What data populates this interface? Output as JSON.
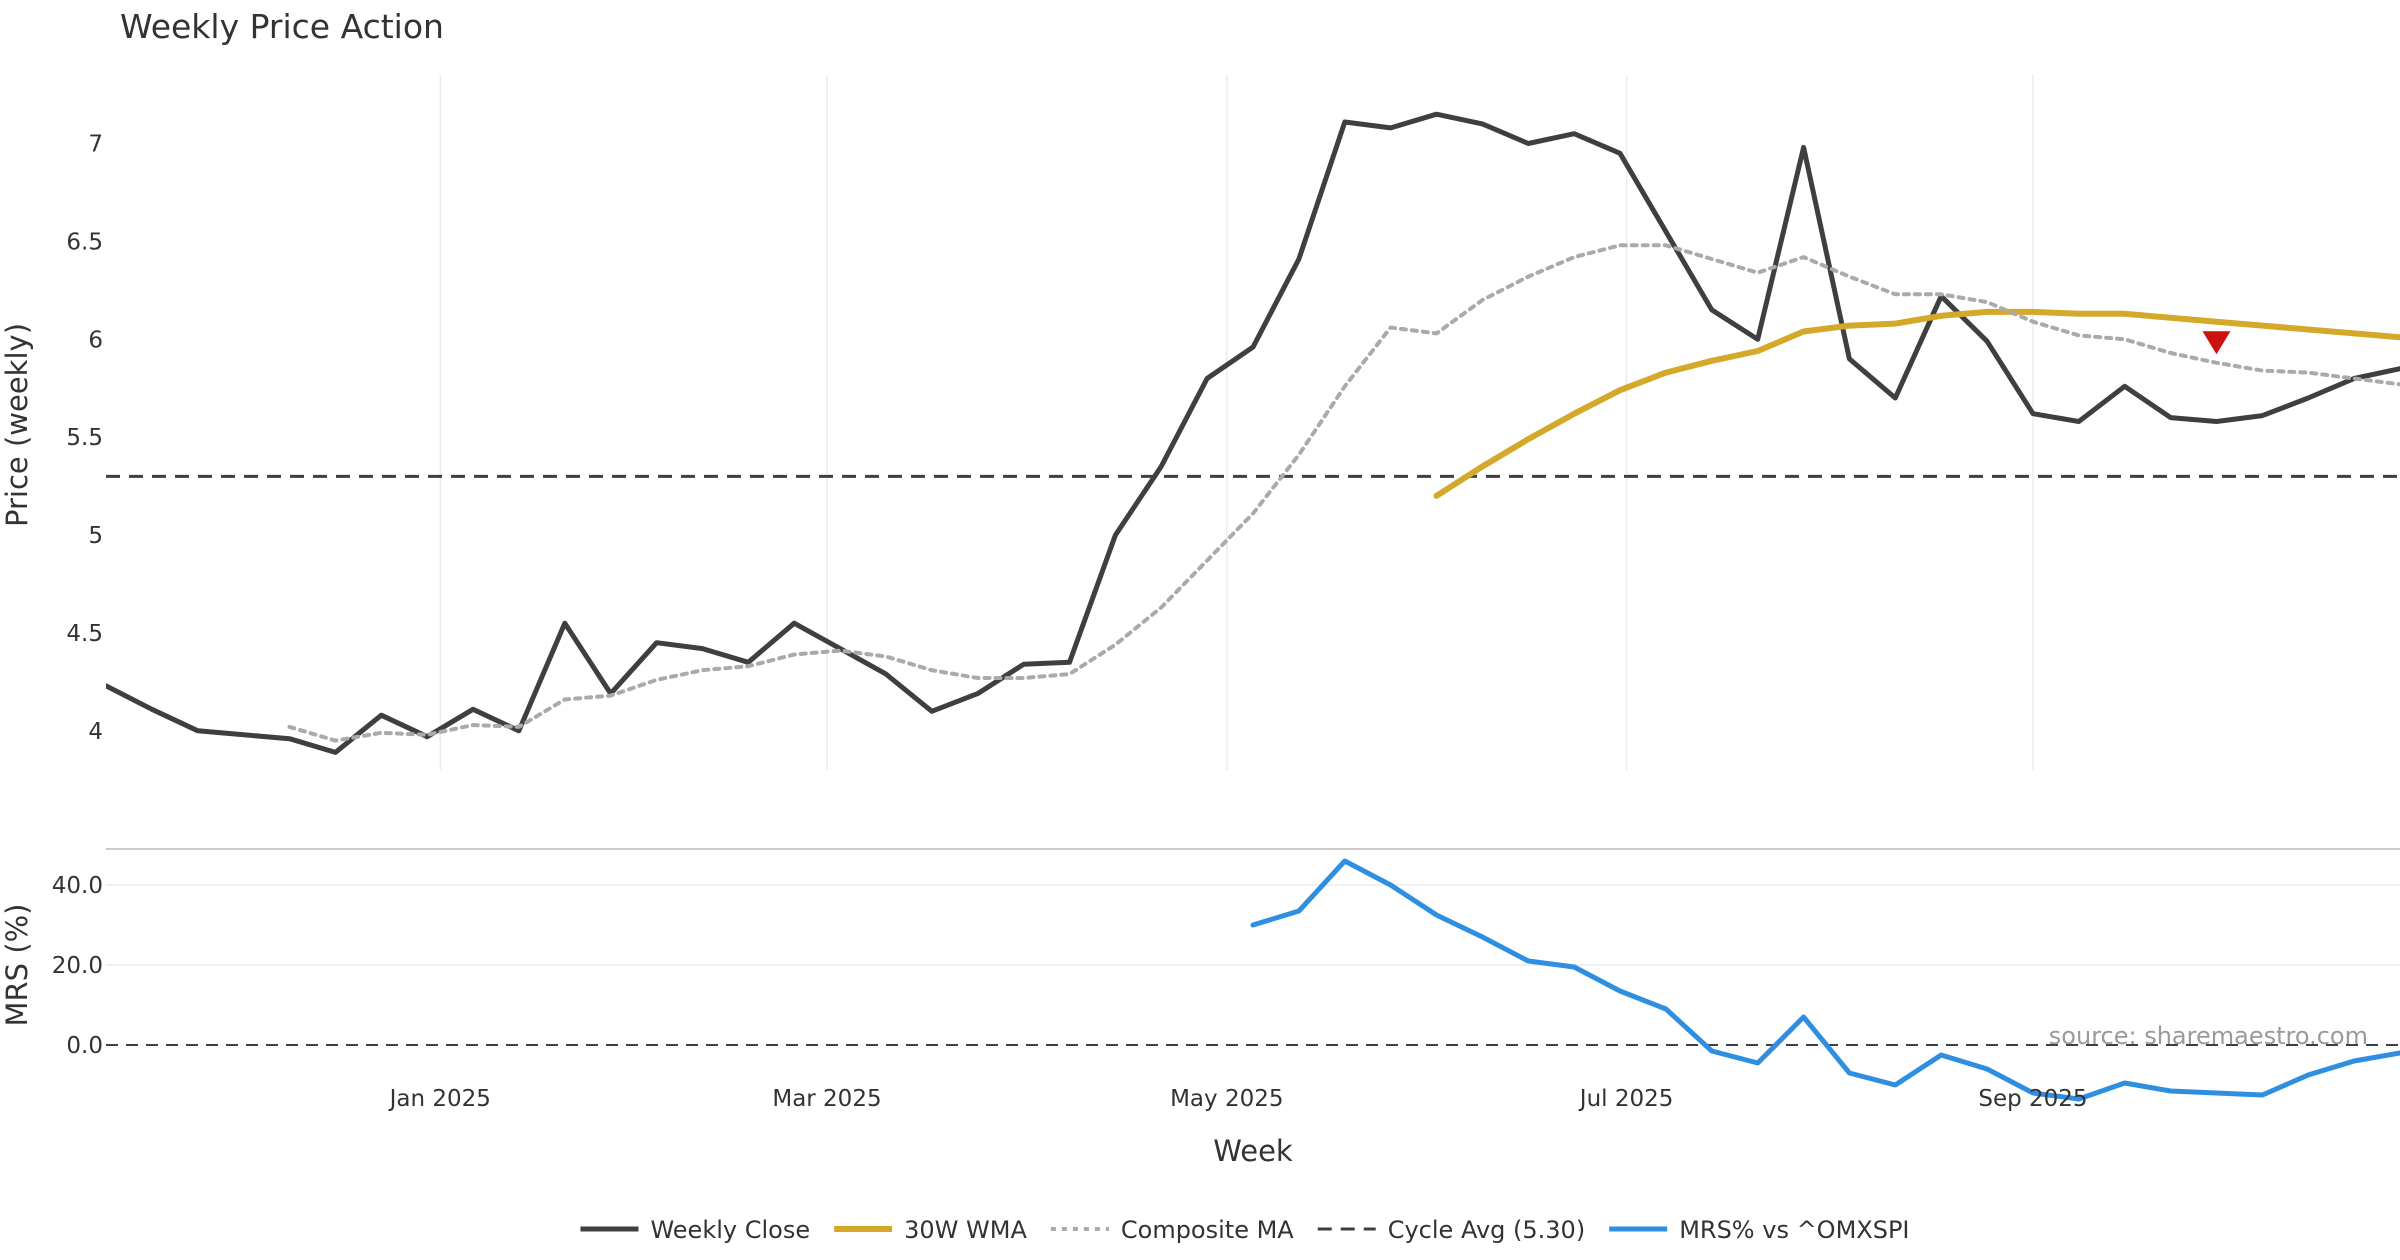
{
  "chart_data": {
    "type": "line",
    "title": "Weekly Price Action",
    "xlabel": "Week",
    "source": "source: sharemaestro.com",
    "x_ticks": [
      "Jan 2025",
      "Mar 2025",
      "May 2025",
      "Jul 2025",
      "Sep 2025"
    ],
    "price_panel": {
      "ylabel": "Price (weekly)",
      "ylim": [
        3.8,
        7.35
      ],
      "y_ticks": [
        "4",
        "4.5",
        "5",
        "5.5",
        "6",
        "6.5",
        "7"
      ],
      "grid": "vertical",
      "reference_line": {
        "name": "Cycle Avg (5.30)",
        "value": 5.3
      },
      "sell_marker": {
        "week": "2025-09-29",
        "value": 5.98,
        "color": "#cc1111"
      }
    },
    "mrs_panel": {
      "ylabel": "MRS (%)",
      "ylim": [
        -15,
        50
      ],
      "y_ticks": [
        "0.0",
        "20.0",
        "40.0"
      ],
      "zero_line": 0.0
    },
    "weeks": [
      "2024-11-11",
      "2024-11-18",
      "2024-11-25",
      "2024-12-02",
      "2024-12-09",
      "2024-12-16",
      "2024-12-23",
      "2024-12-30",
      "2025-01-06",
      "2025-01-13",
      "2025-01-20",
      "2025-01-27",
      "2025-02-03",
      "2025-02-10",
      "2025-02-17",
      "2025-02-24",
      "2025-03-03",
      "2025-03-10",
      "2025-03-17",
      "2025-03-24",
      "2025-03-31",
      "2025-04-07",
      "2025-04-14",
      "2025-04-21",
      "2025-04-28",
      "2025-05-05",
      "2025-05-12",
      "2025-05-19",
      "2025-05-26",
      "2025-06-02",
      "2025-06-09",
      "2025-06-16",
      "2025-06-23",
      "2025-06-30",
      "2025-07-07",
      "2025-07-14",
      "2025-07-21",
      "2025-07-28",
      "2025-08-04",
      "2025-08-11",
      "2025-08-18",
      "2025-08-25",
      "2025-09-01",
      "2025-09-08",
      "2025-09-15",
      "2025-09-22",
      "2025-09-29",
      "2025-10-06",
      "2025-10-13",
      "2025-10-20",
      "2025-10-27"
    ],
    "series": [
      {
        "name": "Weekly Close",
        "color": "#3f3f3f",
        "style": "solid",
        "panel": "price",
        "values": [
          4.23,
          4.11,
          4.0,
          3.98,
          3.96,
          3.89,
          4.08,
          3.97,
          4.11,
          4.0,
          4.55,
          4.19,
          4.45,
          4.42,
          4.35,
          4.55,
          4.42,
          4.29,
          4.1,
          4.19,
          4.34,
          4.35,
          5.0,
          5.35,
          5.8,
          5.96,
          6.41,
          7.11,
          7.08,
          7.15,
          7.1,
          7.0,
          7.05,
          6.95,
          6.55,
          6.15,
          6.0,
          6.98,
          5.9,
          5.7,
          6.22,
          5.99,
          5.62,
          5.58,
          5.76,
          5.6,
          5.58,
          5.61,
          5.7,
          5.8,
          5.85
        ]
      },
      {
        "name": "30W WMA",
        "color": "#d4a92a",
        "style": "solid",
        "panel": "price",
        "values": [
          null,
          null,
          null,
          null,
          null,
          null,
          null,
          null,
          null,
          null,
          null,
          null,
          null,
          null,
          null,
          null,
          null,
          null,
          null,
          null,
          null,
          null,
          null,
          null,
          null,
          null,
          null,
          null,
          null,
          5.2,
          5.35,
          5.49,
          5.62,
          5.74,
          5.83,
          5.89,
          5.94,
          6.04,
          6.07,
          6.08,
          6.12,
          6.14,
          6.14,
          6.13,
          6.13,
          6.11,
          6.09,
          6.07,
          6.05,
          6.03,
          6.01
        ]
      },
      {
        "name": "Composite MA",
        "color": "#aaaaaa",
        "style": "dotted",
        "panel": "price",
        "values": [
          null,
          null,
          null,
          null,
          4.02,
          3.95,
          3.99,
          3.98,
          4.03,
          4.02,
          4.16,
          4.18,
          4.26,
          4.31,
          4.33,
          4.39,
          4.41,
          4.38,
          4.31,
          4.27,
          4.27,
          4.29,
          4.44,
          4.63,
          4.87,
          5.11,
          5.41,
          5.76,
          6.06,
          6.03,
          6.2,
          6.32,
          6.42,
          6.48,
          6.48,
          6.41,
          6.34,
          6.42,
          6.32,
          6.23,
          6.23,
          6.19,
          6.09,
          6.02,
          6.0,
          5.93,
          5.88,
          5.84,
          5.83,
          5.8,
          5.77
        ]
      },
      {
        "name": "MRS% vs ^OMXSPI",
        "color": "#2e8fe0",
        "style": "solid",
        "panel": "mrs",
        "values": [
          null,
          null,
          null,
          null,
          null,
          null,
          null,
          null,
          null,
          null,
          null,
          null,
          null,
          null,
          null,
          null,
          null,
          null,
          null,
          null,
          null,
          null,
          null,
          null,
          null,
          30.0,
          33.5,
          46.0,
          40.0,
          32.5,
          27.0,
          21.0,
          19.5,
          13.5,
          9.0,
          -1.5,
          -4.5,
          7.0,
          -7.0,
          -10.0,
          -2.5,
          -6.0,
          -12.0,
          -13.5,
          -9.5,
          -11.5,
          -12.0,
          -12.5,
          -7.5,
          -4.0,
          -2.0
        ]
      }
    ],
    "legend": {
      "placement": "bottom-center",
      "entries": [
        "Weekly Close",
        "30W WMA",
        "Composite MA",
        "Cycle Avg (5.30)",
        "MRS% vs ^OMXSPI"
      ]
    }
  }
}
